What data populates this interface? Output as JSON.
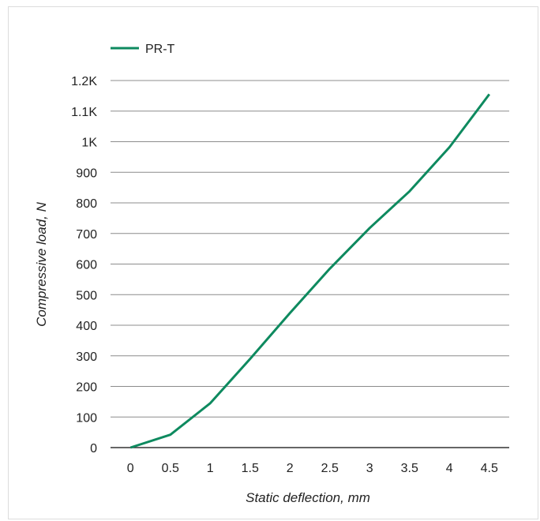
{
  "chart_data": {
    "type": "line",
    "xlabel": "Static deflection, mm",
    "ylabel": "Compressive load, N",
    "x_ticks": [
      "0",
      "0.5",
      "1",
      "1.5",
      "2",
      "2.5",
      "3",
      "3.5",
      "4",
      "4.5"
    ],
    "y_ticks": [
      "0",
      "100",
      "200",
      "300",
      "400",
      "500",
      "600",
      "700",
      "800",
      "900",
      "1K",
      "1.1K",
      "1.2K"
    ],
    "xlim": [
      -0.25,
      4.75
    ],
    "ylim": [
      0,
      1200
    ],
    "grid": "horizontal",
    "legend_position": "top-left",
    "series": [
      {
        "name": "PR-T",
        "color": "#0e8a5f",
        "x": [
          0,
          0.5,
          1,
          1.5,
          2,
          2.5,
          3,
          3.5,
          4,
          4.5
        ],
        "y": [
          0,
          42,
          145,
          290,
          440,
          585,
          718,
          838,
          982,
          1155
        ]
      }
    ]
  }
}
